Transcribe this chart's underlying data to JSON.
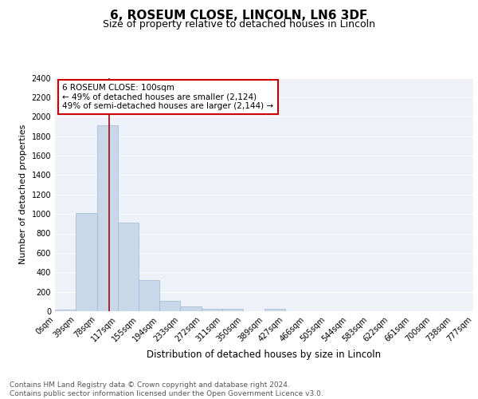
{
  "title1": "6, ROSEUM CLOSE, LINCOLN, LN6 3DF",
  "title2": "Size of property relative to detached houses in Lincoln",
  "xlabel": "Distribution of detached houses by size in Lincoln",
  "ylabel": "Number of detached properties",
  "bar_edges": [
    0,
    39,
    78,
    117,
    155,
    194,
    233,
    272,
    311,
    350,
    389,
    427,
    466,
    505,
    544,
    583,
    622,
    661,
    700,
    738,
    777
  ],
  "bar_heights": [
    20,
    1010,
    1910,
    910,
    320,
    110,
    50,
    28,
    28,
    0,
    25,
    0,
    0,
    0,
    0,
    0,
    0,
    0,
    0,
    0
  ],
  "bar_color": "#c8d8e8",
  "bar_edgecolor": "#a0b8d0",
  "vline_x": 100,
  "vline_color": "#aa0000",
  "annotation_text": "6 ROSEUM CLOSE: 100sqm\n← 49% of detached houses are smaller (2,124)\n49% of semi-detached houses are larger (2,144) →",
  "annotation_box_facecolor": "white",
  "annotation_box_edgecolor": "#cc0000",
  "ylim": [
    0,
    2400
  ],
  "yticks": [
    0,
    200,
    400,
    600,
    800,
    1000,
    1200,
    1400,
    1600,
    1800,
    2000,
    2200,
    2400
  ],
  "tick_labels": [
    "0sqm",
    "39sqm",
    "78sqm",
    "117sqm",
    "155sqm",
    "194sqm",
    "233sqm",
    "272sqm",
    "311sqm",
    "350sqm",
    "389sqm",
    "427sqm",
    "466sqm",
    "505sqm",
    "544sqm",
    "583sqm",
    "622sqm",
    "661sqm",
    "700sqm",
    "738sqm",
    "777sqm"
  ],
  "footer_text": "Contains HM Land Registry data © Crown copyright and database right 2024.\nContains public sector information licensed under the Open Government Licence v3.0.",
  "background_color": "#eef2f8",
  "grid_color": "white",
  "title1_fontsize": 11,
  "title2_fontsize": 9,
  "xlabel_fontsize": 8.5,
  "ylabel_fontsize": 8,
  "tick_fontsize": 7,
  "footer_fontsize": 6.5,
  "annotation_fontsize": 7.5
}
